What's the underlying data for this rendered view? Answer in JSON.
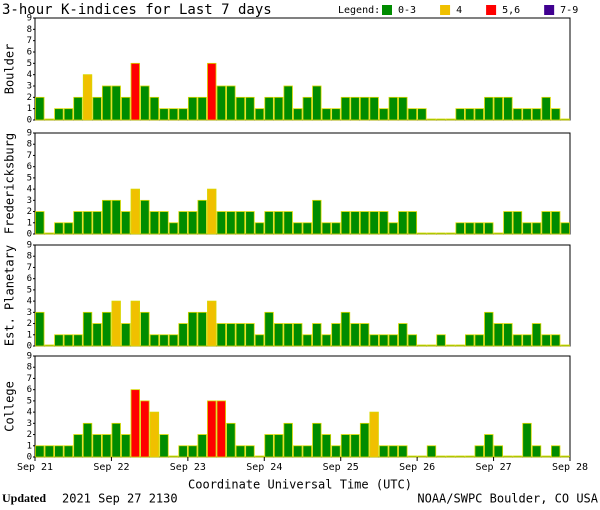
{
  "title": "3-hour K-indices for Last 7 days",
  "legend": {
    "title": "Legend:",
    "items": [
      {
        "label": "0-3",
        "color": "#008c00",
        "range": [
          0,
          3
        ]
      },
      {
        "label": "4",
        "color": "#f0c000",
        "range": [
          4,
          4
        ]
      },
      {
        "label": "5,6",
        "color": "#ff0000",
        "range": [
          5,
          6
        ]
      },
      {
        "label": "7-9",
        "color": "#400090",
        "range": [
          7,
          9
        ]
      }
    ]
  },
  "x_axis": {
    "label": "Coordinate Universal Time (UTC)",
    "ticks": [
      "Sep 21",
      "Sep 22",
      "Sep 23",
      "Sep 24",
      "Sep 25",
      "Sep 26",
      "Sep 27",
      "Sep 28"
    ]
  },
  "chart_data": [
    {
      "type": "bar",
      "ylabel": "Boulder",
      "ylim": [
        0,
        9
      ],
      "yticks": [
        0,
        1,
        2,
        3,
        4,
        5,
        6,
        7,
        8,
        9
      ],
      "values": [
        2,
        0,
        1,
        1,
        2,
        4,
        2,
        3,
        3,
        2,
        5,
        3,
        2,
        1,
        1,
        1,
        2,
        2,
        5,
        3,
        3,
        2,
        2,
        1,
        2,
        2,
        3,
        1,
        2,
        3,
        1,
        1,
        2,
        2,
        2,
        2,
        1,
        2,
        2,
        1,
        1,
        0,
        0,
        0,
        1,
        1,
        1,
        2,
        2,
        2,
        1,
        1,
        1,
        2,
        1,
        0
      ]
    },
    {
      "type": "bar",
      "ylabel": "Fredericksburg",
      "ylim": [
        0,
        9
      ],
      "yticks": [
        0,
        1,
        2,
        3,
        4,
        5,
        6,
        7,
        8,
        9
      ],
      "values": [
        2,
        0,
        1,
        1,
        2,
        2,
        2,
        3,
        3,
        2,
        4,
        3,
        2,
        2,
        1,
        2,
        2,
        3,
        4,
        2,
        2,
        2,
        2,
        1,
        2,
        2,
        2,
        1,
        1,
        3,
        1,
        1,
        2,
        2,
        2,
        2,
        2,
        1,
        2,
        2,
        0,
        0,
        0,
        0,
        1,
        1,
        1,
        1,
        0,
        2,
        2,
        1,
        1,
        2,
        2,
        1
      ]
    },
    {
      "type": "bar",
      "ylabel": "Est. Planetary",
      "ylim": [
        0,
        9
      ],
      "yticks": [
        0,
        1,
        2,
        3,
        4,
        5,
        6,
        7,
        8,
        9
      ],
      "values": [
        3,
        0,
        1,
        1,
        1,
        3,
        2,
        3,
        4,
        2,
        4,
        3,
        1,
        1,
        1,
        2,
        3,
        3,
        4,
        2,
        2,
        2,
        2,
        1,
        3,
        2,
        2,
        2,
        1,
        2,
        1,
        2,
        3,
        2,
        2,
        1,
        1,
        1,
        2,
        1,
        0,
        0,
        1,
        0,
        0,
        1,
        1,
        3,
        2,
        2,
        1,
        1,
        2,
        1,
        1,
        0
      ]
    },
    {
      "type": "bar",
      "ylabel": "College",
      "ylim": [
        0,
        9
      ],
      "yticks": [
        0,
        1,
        2,
        3,
        4,
        5,
        6,
        7,
        8,
        9
      ],
      "values": [
        1,
        1,
        1,
        1,
        2,
        3,
        2,
        2,
        3,
        2,
        6,
        5,
        4,
        2,
        0,
        1,
        1,
        2,
        5,
        5,
        3,
        1,
        1,
        0,
        2,
        2,
        3,
        1,
        1,
        3,
        2,
        1,
        2,
        2,
        3,
        4,
        1,
        1,
        1,
        0,
        0,
        1,
        0,
        0,
        0,
        0,
        1,
        2,
        1,
        0,
        0,
        3,
        1,
        0,
        1,
        0
      ]
    }
  ],
  "footer": {
    "updated_label": "Updated",
    "updated": "2021 Sep 27 2130",
    "source": "NOAA/SWPC Boulder, CO USA"
  }
}
